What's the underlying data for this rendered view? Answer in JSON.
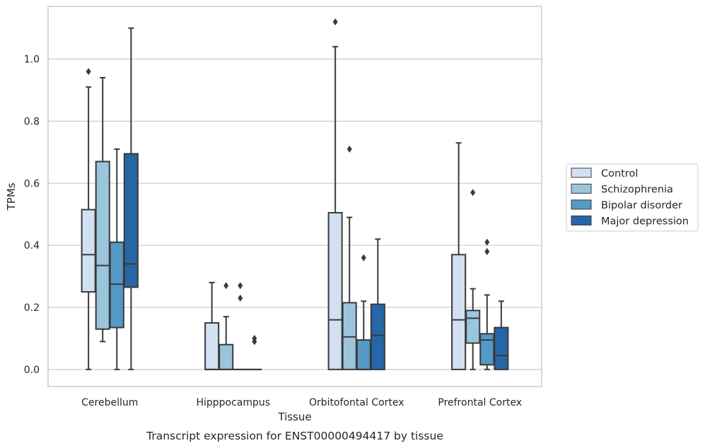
{
  "chart_data": {
    "type": "box",
    "title": "",
    "caption": "Transcript expression for ENST00000494417 by tissue",
    "xlabel": "Tissue",
    "ylabel": "TPMs",
    "ylim": [
      -0.055,
      1.17
    ],
    "yticks": [
      "0.0",
      "0.2",
      "0.4",
      "0.6",
      "0.8",
      "1.0"
    ],
    "grid": "horizontal",
    "legend_position": "right",
    "categories": [
      "Cerebellum",
      "Hipppocampus",
      "Orbitofontal Cortex",
      "Prefrontal Cortex"
    ],
    "series": [
      {
        "name": "Control",
        "color": "#d1e1f1",
        "boxes": [
          {
            "whislo": 0.0,
            "q1": 0.25,
            "med": 0.37,
            "q3": 0.515,
            "whishi": 0.91,
            "fliers": [
              0.96
            ]
          },
          {
            "whislo": 0.0,
            "q1": 0.0,
            "med": 0.0,
            "q3": 0.15,
            "whishi": 0.28,
            "fliers": []
          },
          {
            "whislo": 0.0,
            "q1": 0.0,
            "med": 0.16,
            "q3": 0.505,
            "whishi": 1.04,
            "fliers": [
              1.12
            ]
          },
          {
            "whislo": 0.0,
            "q1": 0.0,
            "med": 0.16,
            "q3": 0.37,
            "whishi": 0.73,
            "fliers": []
          }
        ]
      },
      {
        "name": "Schizophrenia",
        "color": "#9bc5dd",
        "boxes": [
          {
            "whislo": 0.09,
            "q1": 0.13,
            "med": 0.335,
            "q3": 0.67,
            "whishi": 0.94,
            "fliers": []
          },
          {
            "whislo": 0.0,
            "q1": 0.0,
            "med": 0.0,
            "q3": 0.08,
            "whishi": 0.17,
            "fliers": [
              0.27
            ]
          },
          {
            "whislo": 0.0,
            "q1": 0.0,
            "med": 0.105,
            "q3": 0.215,
            "whishi": 0.49,
            "fliers": [
              0.71
            ]
          },
          {
            "whislo": 0.0,
            "q1": 0.085,
            "med": 0.165,
            "q3": 0.19,
            "whishi": 0.26,
            "fliers": [
              0.57
            ]
          }
        ]
      },
      {
        "name": "Bipolar disorder",
        "color": "#5599c5",
        "boxes": [
          {
            "whislo": 0.0,
            "q1": 0.135,
            "med": 0.275,
            "q3": 0.41,
            "whishi": 0.71,
            "fliers": []
          },
          {
            "whislo": 0.0,
            "q1": 0.0,
            "med": 0.0,
            "q3": 0.0,
            "whishi": 0.0,
            "fliers": [
              0.23,
              0.27
            ]
          },
          {
            "whislo": 0.0,
            "q1": 0.0,
            "med": 0.0,
            "q3": 0.095,
            "whishi": 0.22,
            "fliers": [
              0.36
            ]
          },
          {
            "whislo": 0.0,
            "q1": 0.015,
            "med": 0.095,
            "q3": 0.115,
            "whishi": 0.24,
            "fliers": [
              0.38,
              0.41
            ]
          }
        ]
      },
      {
        "name": "Major depression",
        "color": "#2666a6",
        "boxes": [
          {
            "whislo": 0.0,
            "q1": 0.265,
            "med": 0.34,
            "q3": 0.695,
            "whishi": 1.1,
            "fliers": []
          },
          {
            "whislo": 0.0,
            "q1": 0.0,
            "med": 0.0,
            "q3": 0.0,
            "whishi": 0.0,
            "fliers": [
              0.09,
              0.1
            ]
          },
          {
            "whislo": 0.0,
            "q1": 0.0,
            "med": 0.11,
            "q3": 0.21,
            "whishi": 0.42,
            "fliers": []
          },
          {
            "whislo": 0.0,
            "q1": 0.0,
            "med": 0.045,
            "q3": 0.135,
            "whishi": 0.22,
            "fliers": []
          }
        ]
      }
    ]
  },
  "colors": {
    "grid": "#cccccc",
    "frame": "#cccccc",
    "line": "#3a3a3a"
  }
}
